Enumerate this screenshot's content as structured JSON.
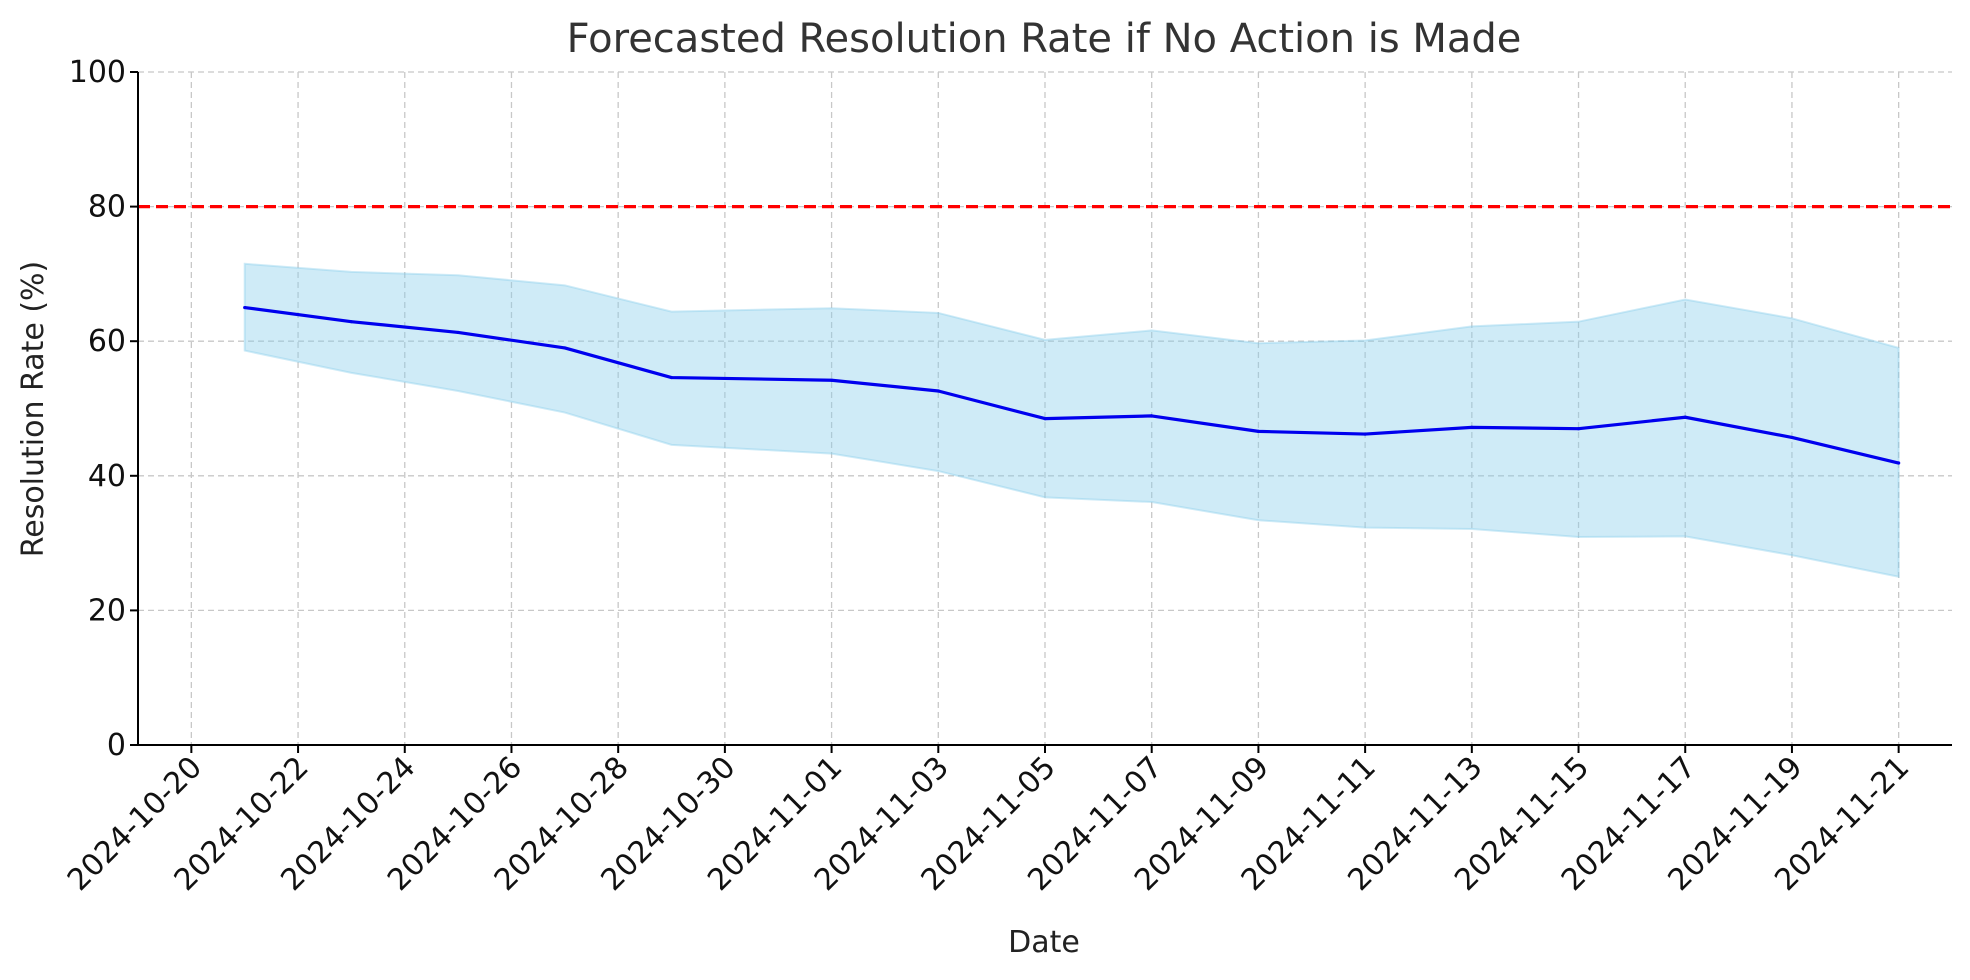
{
  "chart_data": {
    "type": "line",
    "title": "Forecasted Resolution Rate if No Action is Made",
    "xlabel": "Date",
    "ylabel": "Resolution Rate (%)",
    "ylim": [
      0,
      100
    ],
    "xlim": [
      "2024-10-19",
      "2024-11-22"
    ],
    "grid": true,
    "yticks": [
      0,
      20,
      40,
      60,
      80,
      100
    ],
    "xticks": [
      "2024-10-20",
      "2024-10-22",
      "2024-10-24",
      "2024-10-26",
      "2024-10-28",
      "2024-10-30",
      "2024-11-01",
      "2024-11-03",
      "2024-11-05",
      "2024-11-07",
      "2024-11-09",
      "2024-11-11",
      "2024-11-13",
      "2024-11-15",
      "2024-11-17",
      "2024-11-19",
      "2024-11-21"
    ],
    "x": [
      "2024-10-21",
      "2024-10-23",
      "2024-10-25",
      "2024-10-27",
      "2024-10-29",
      "2024-11-01",
      "2024-11-03",
      "2024-11-05",
      "2024-11-07",
      "2024-11-09",
      "2024-11-11",
      "2024-11-13",
      "2024-11-15",
      "2024-11-17",
      "2024-11-19",
      "2024-11-21"
    ],
    "series": [
      {
        "values": [
          65.0,
          62.9,
          61.3,
          59.0,
          54.6,
          54.2,
          52.6,
          48.5,
          48.9,
          46.6,
          46.2,
          47.2,
          47.0,
          48.7,
          45.7,
          41.9
        ],
        "color": "#0000ee"
      }
    ],
    "confidence_band": {
      "lower": [
        58.6,
        55.3,
        52.6,
        49.4,
        44.6,
        43.3,
        40.7,
        36.8,
        36.1,
        33.4,
        32.3,
        32.1,
        30.9,
        31.0,
        28.2,
        25.0
      ],
      "upper": [
        71.5,
        70.3,
        69.8,
        68.3,
        64.4,
        64.9,
        64.2,
        60.2,
        61.6,
        59.7,
        60.1,
        62.2,
        62.9,
        66.2,
        63.4,
        59.0
      ],
      "color": "#87ceeb"
    },
    "target_line": {
      "value": 80,
      "color": "#ff0000",
      "style": "dashed"
    }
  }
}
